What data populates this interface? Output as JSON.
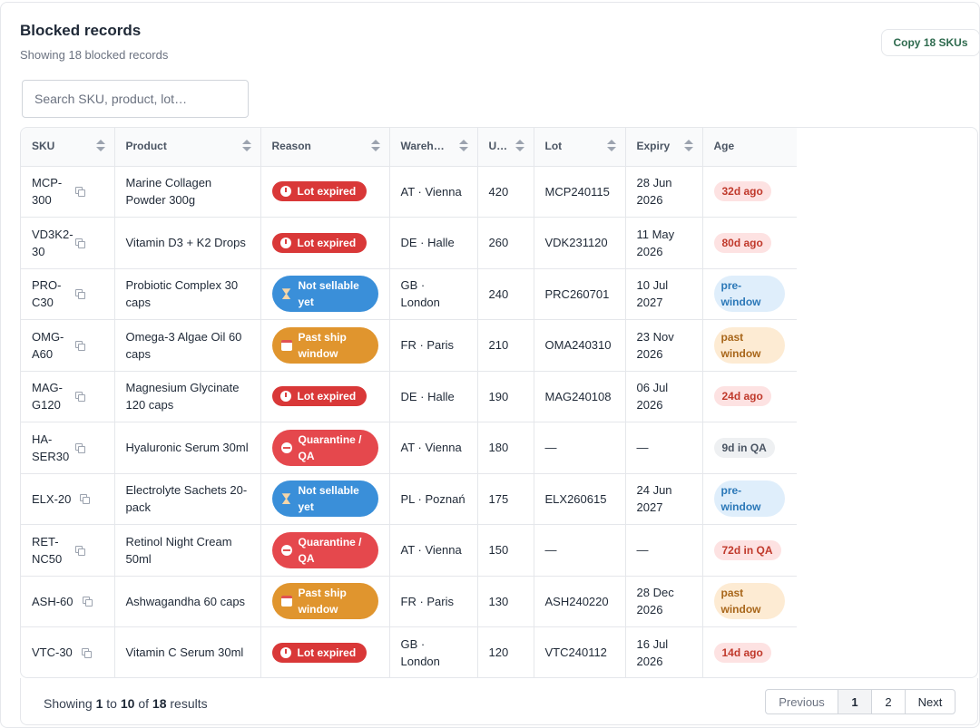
{
  "header": {
    "title": "Blocked records",
    "subtitle": "Showing 18 blocked records",
    "copy_button": "Copy 18 SKUs"
  },
  "search": {
    "placeholder": "Search SKU, product, lot…",
    "value": ""
  },
  "columns": [
    "SKU",
    "Product",
    "Reason",
    "Wareh…",
    "U…",
    "Lot",
    "Expiry",
    "Age"
  ],
  "rows": [
    {
      "sku": "MCP-300",
      "product": "Marine Collagen Powder 300g",
      "reason": "Lot expired",
      "reason_type": "expired",
      "warehouse": "AT · Vienna",
      "units": "420",
      "lot": "MCP240115",
      "expiry": "28 Jun 2026",
      "age": "32d ago",
      "age_type": "red"
    },
    {
      "sku": "VD3K2-30",
      "product": "Vitamin D3 + K2 Drops",
      "reason": "Lot expired",
      "reason_type": "expired",
      "warehouse": "DE · Halle",
      "units": "260",
      "lot": "VDK231120",
      "expiry": "11 May 2026",
      "age": "80d ago",
      "age_type": "red"
    },
    {
      "sku": "PRO-C30",
      "product": "Probiotic Complex 30 caps",
      "reason": "Not sellable yet",
      "reason_type": "notyet",
      "warehouse": "GB · London",
      "units": "240",
      "lot": "PRC260701",
      "expiry": "10 Jul 2027",
      "age": "pre-window",
      "age_type": "blue"
    },
    {
      "sku": "OMG-A60",
      "product": "Omega-3 Algae Oil 60 caps",
      "reason": "Past ship window",
      "reason_type": "pastship",
      "warehouse": "FR · Paris",
      "units": "210",
      "lot": "OMA240310",
      "expiry": "23 Nov 2026",
      "age": "past window",
      "age_type": "orange"
    },
    {
      "sku": "MAG-G120",
      "product": "Magnesium Glycinate 120 caps",
      "reason": "Lot expired",
      "reason_type": "expired",
      "warehouse": "DE · Halle",
      "units": "190",
      "lot": "MAG240108",
      "expiry": "06 Jul 2026",
      "age": "24d ago",
      "age_type": "red"
    },
    {
      "sku": "HA-SER30",
      "product": "Hyaluronic Serum 30ml",
      "reason": "Quarantine / QA",
      "reason_type": "quarantine",
      "warehouse": "AT · Vienna",
      "units": "180",
      "lot": "—",
      "expiry": "—",
      "age": "9d in QA",
      "age_type": "gray"
    },
    {
      "sku": "ELX-20",
      "product": "Electrolyte Sachets 20-pack",
      "reason": "Not sellable yet",
      "reason_type": "notyet",
      "warehouse": "PL · Poznań",
      "units": "175",
      "lot": "ELX260615",
      "expiry": "24 Jun 2027",
      "age": "pre-window",
      "age_type": "blue"
    },
    {
      "sku": "RET-NC50",
      "product": "Retinol Night Cream 50ml",
      "reason": "Quarantine / QA",
      "reason_type": "quarantine",
      "warehouse": "AT · Vienna",
      "units": "150",
      "lot": "—",
      "expiry": "—",
      "age": "72d in QA",
      "age_type": "red"
    },
    {
      "sku": "ASH-60",
      "product": "Ashwagandha 60 caps",
      "reason": "Past ship window",
      "reason_type": "pastship",
      "warehouse": "FR · Paris",
      "units": "130",
      "lot": "ASH240220",
      "expiry": "28 Dec 2026",
      "age": "past window",
      "age_type": "orange"
    },
    {
      "sku": "VTC-30",
      "product": "Vitamin C Serum 30ml",
      "reason": "Lot expired",
      "reason_type": "expired",
      "warehouse": "GB · London",
      "units": "120",
      "lot": "VTC240112",
      "expiry": "16 Jul 2026",
      "age": "14d ago",
      "age_type": "red"
    }
  ],
  "footer": {
    "showing_prefix": "Showing",
    "from": "1",
    "to_word": "to",
    "to": "10",
    "of_word": "of",
    "total": "18",
    "suffix": "results"
  },
  "pagination": {
    "previous": "Previous",
    "pages": [
      "1",
      "2"
    ],
    "current": "1",
    "next": "Next"
  },
  "colors": {
    "expired": "#d93838",
    "not_sellable": "#3a8fd9",
    "past_ship": "#e0952e",
    "quarantine": "#e5484d",
    "copy_text": "#2f6b4f"
  }
}
